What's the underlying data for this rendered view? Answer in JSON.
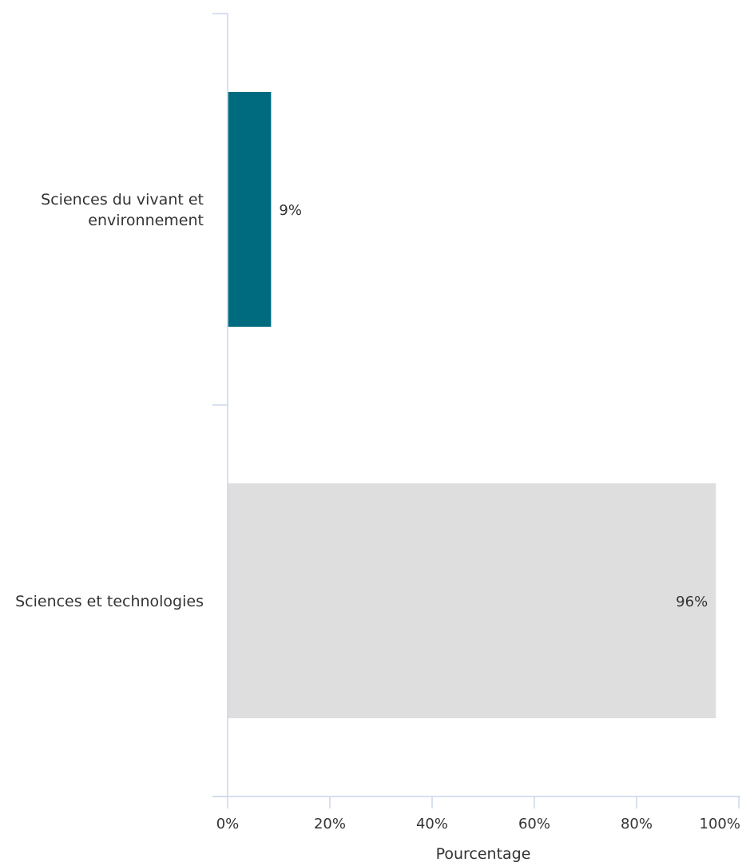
{
  "chart_data": {
    "type": "bar",
    "orientation": "horizontal",
    "categories": [
      [
        "Sciences du vivant et",
        "environnement"
      ],
      [
        "Sciences et technologies"
      ]
    ],
    "values": [
      8.5,
      95.5
    ],
    "data_labels": [
      "9%",
      "96%"
    ],
    "bar_colors": [
      "#006b7f",
      "#dedede"
    ],
    "xlabel": "Pourcentage",
    "ylabel": "",
    "title": "",
    "xlim": [
      0,
      100
    ],
    "x_ticks": [
      0,
      20,
      40,
      60,
      80,
      100
    ],
    "x_tick_labels": [
      "0%",
      "20%",
      "40%",
      "60%",
      "80%",
      "100%"
    ],
    "grid": false,
    "legend": "none",
    "axis_color": "#ccd6eb",
    "text_color": "#333333"
  }
}
